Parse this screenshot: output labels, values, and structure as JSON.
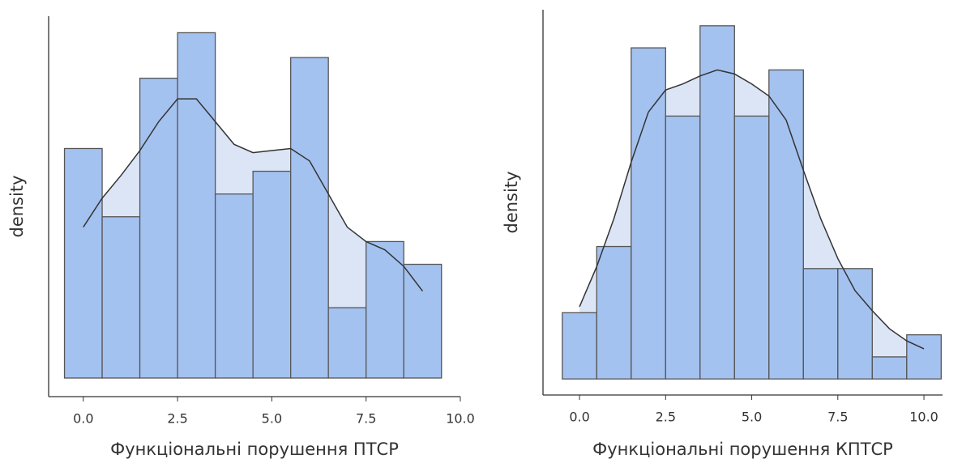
{
  "chart_data": [
    {
      "type": "histogram",
      "xlabel": "Функціональні порушення ПТСР",
      "ylabel": "density",
      "bins": [
        -0.5,
        0.5,
        1.5,
        2.5,
        3.5,
        4.5,
        5.5,
        6.5,
        7.5,
        8.5,
        9.5
      ],
      "values": [
        0.111,
        0.078,
        0.145,
        0.167,
        0.089,
        0.1,
        0.155,
        0.034,
        0.066,
        0.055
      ],
      "kde_x": [
        0,
        0.5,
        1,
        1.5,
        2,
        2.5,
        3,
        3.5,
        4,
        4.5,
        5,
        5.5,
        6,
        6.5,
        7,
        7.5,
        8,
        8.5,
        9
      ],
      "kde_y": [
        0.073,
        0.087,
        0.098,
        0.11,
        0.124,
        0.135,
        0.135,
        0.124,
        0.113,
        0.109,
        0.11,
        0.111,
        0.105,
        0.089,
        0.073,
        0.066,
        0.062,
        0.054,
        0.042
      ],
      "xlim": [
        -0.92,
        10
      ],
      "ylim": [
        -0.009,
        0.175
      ],
      "xticks": [
        {
          "value": 0,
          "label": "0.0"
        },
        {
          "value": 2.5,
          "label": "2.5"
        },
        {
          "value": 5,
          "label": "5.0"
        },
        {
          "value": 7.5,
          "label": "7.5"
        },
        {
          "value": 10,
          "label": "10.0"
        }
      ],
      "color": "#a4c2f0",
      "kde_fill": "#dbe5f6",
      "line_color": "#333333"
    },
    {
      "type": "histogram",
      "xlabel": "Функціональні порушення КПТСР",
      "ylabel": "density",
      "bins": [
        -0.5,
        0.5,
        1.5,
        2.5,
        3.5,
        4.5,
        5.5,
        6.5,
        7.5,
        8.5,
        9.5,
        10.5
      ],
      "values": [
        0.033,
        0.066,
        0.165,
        0.131,
        0.176,
        0.131,
        0.154,
        0.055,
        0.055,
        0.011,
        0.022
      ],
      "kde_x": [
        0,
        0.5,
        1,
        1.5,
        2,
        2.5,
        3,
        3.5,
        4,
        4.5,
        5,
        5.5,
        6,
        6.5,
        7,
        7.5,
        8,
        8.5,
        9,
        9.5,
        10
      ],
      "kde_y": [
        0.036,
        0.056,
        0.08,
        0.108,
        0.133,
        0.144,
        0.147,
        0.151,
        0.154,
        0.152,
        0.147,
        0.141,
        0.129,
        0.104,
        0.08,
        0.06,
        0.044,
        0.034,
        0.025,
        0.019,
        0.015
      ],
      "xlim": [
        -1.06,
        10.54
      ],
      "ylim": [
        -0.008,
        0.184
      ],
      "xticks": [
        {
          "value": 0,
          "label": "0.0"
        },
        {
          "value": 2.5,
          "label": "2.5"
        },
        {
          "value": 5,
          "label": "5.0"
        },
        {
          "value": 7.5,
          "label": "7.5"
        },
        {
          "value": 10,
          "label": "10.0"
        }
      ],
      "color": "#a4c2f0",
      "kde_fill": "#dbe5f6",
      "line_color": "#333333"
    }
  ]
}
